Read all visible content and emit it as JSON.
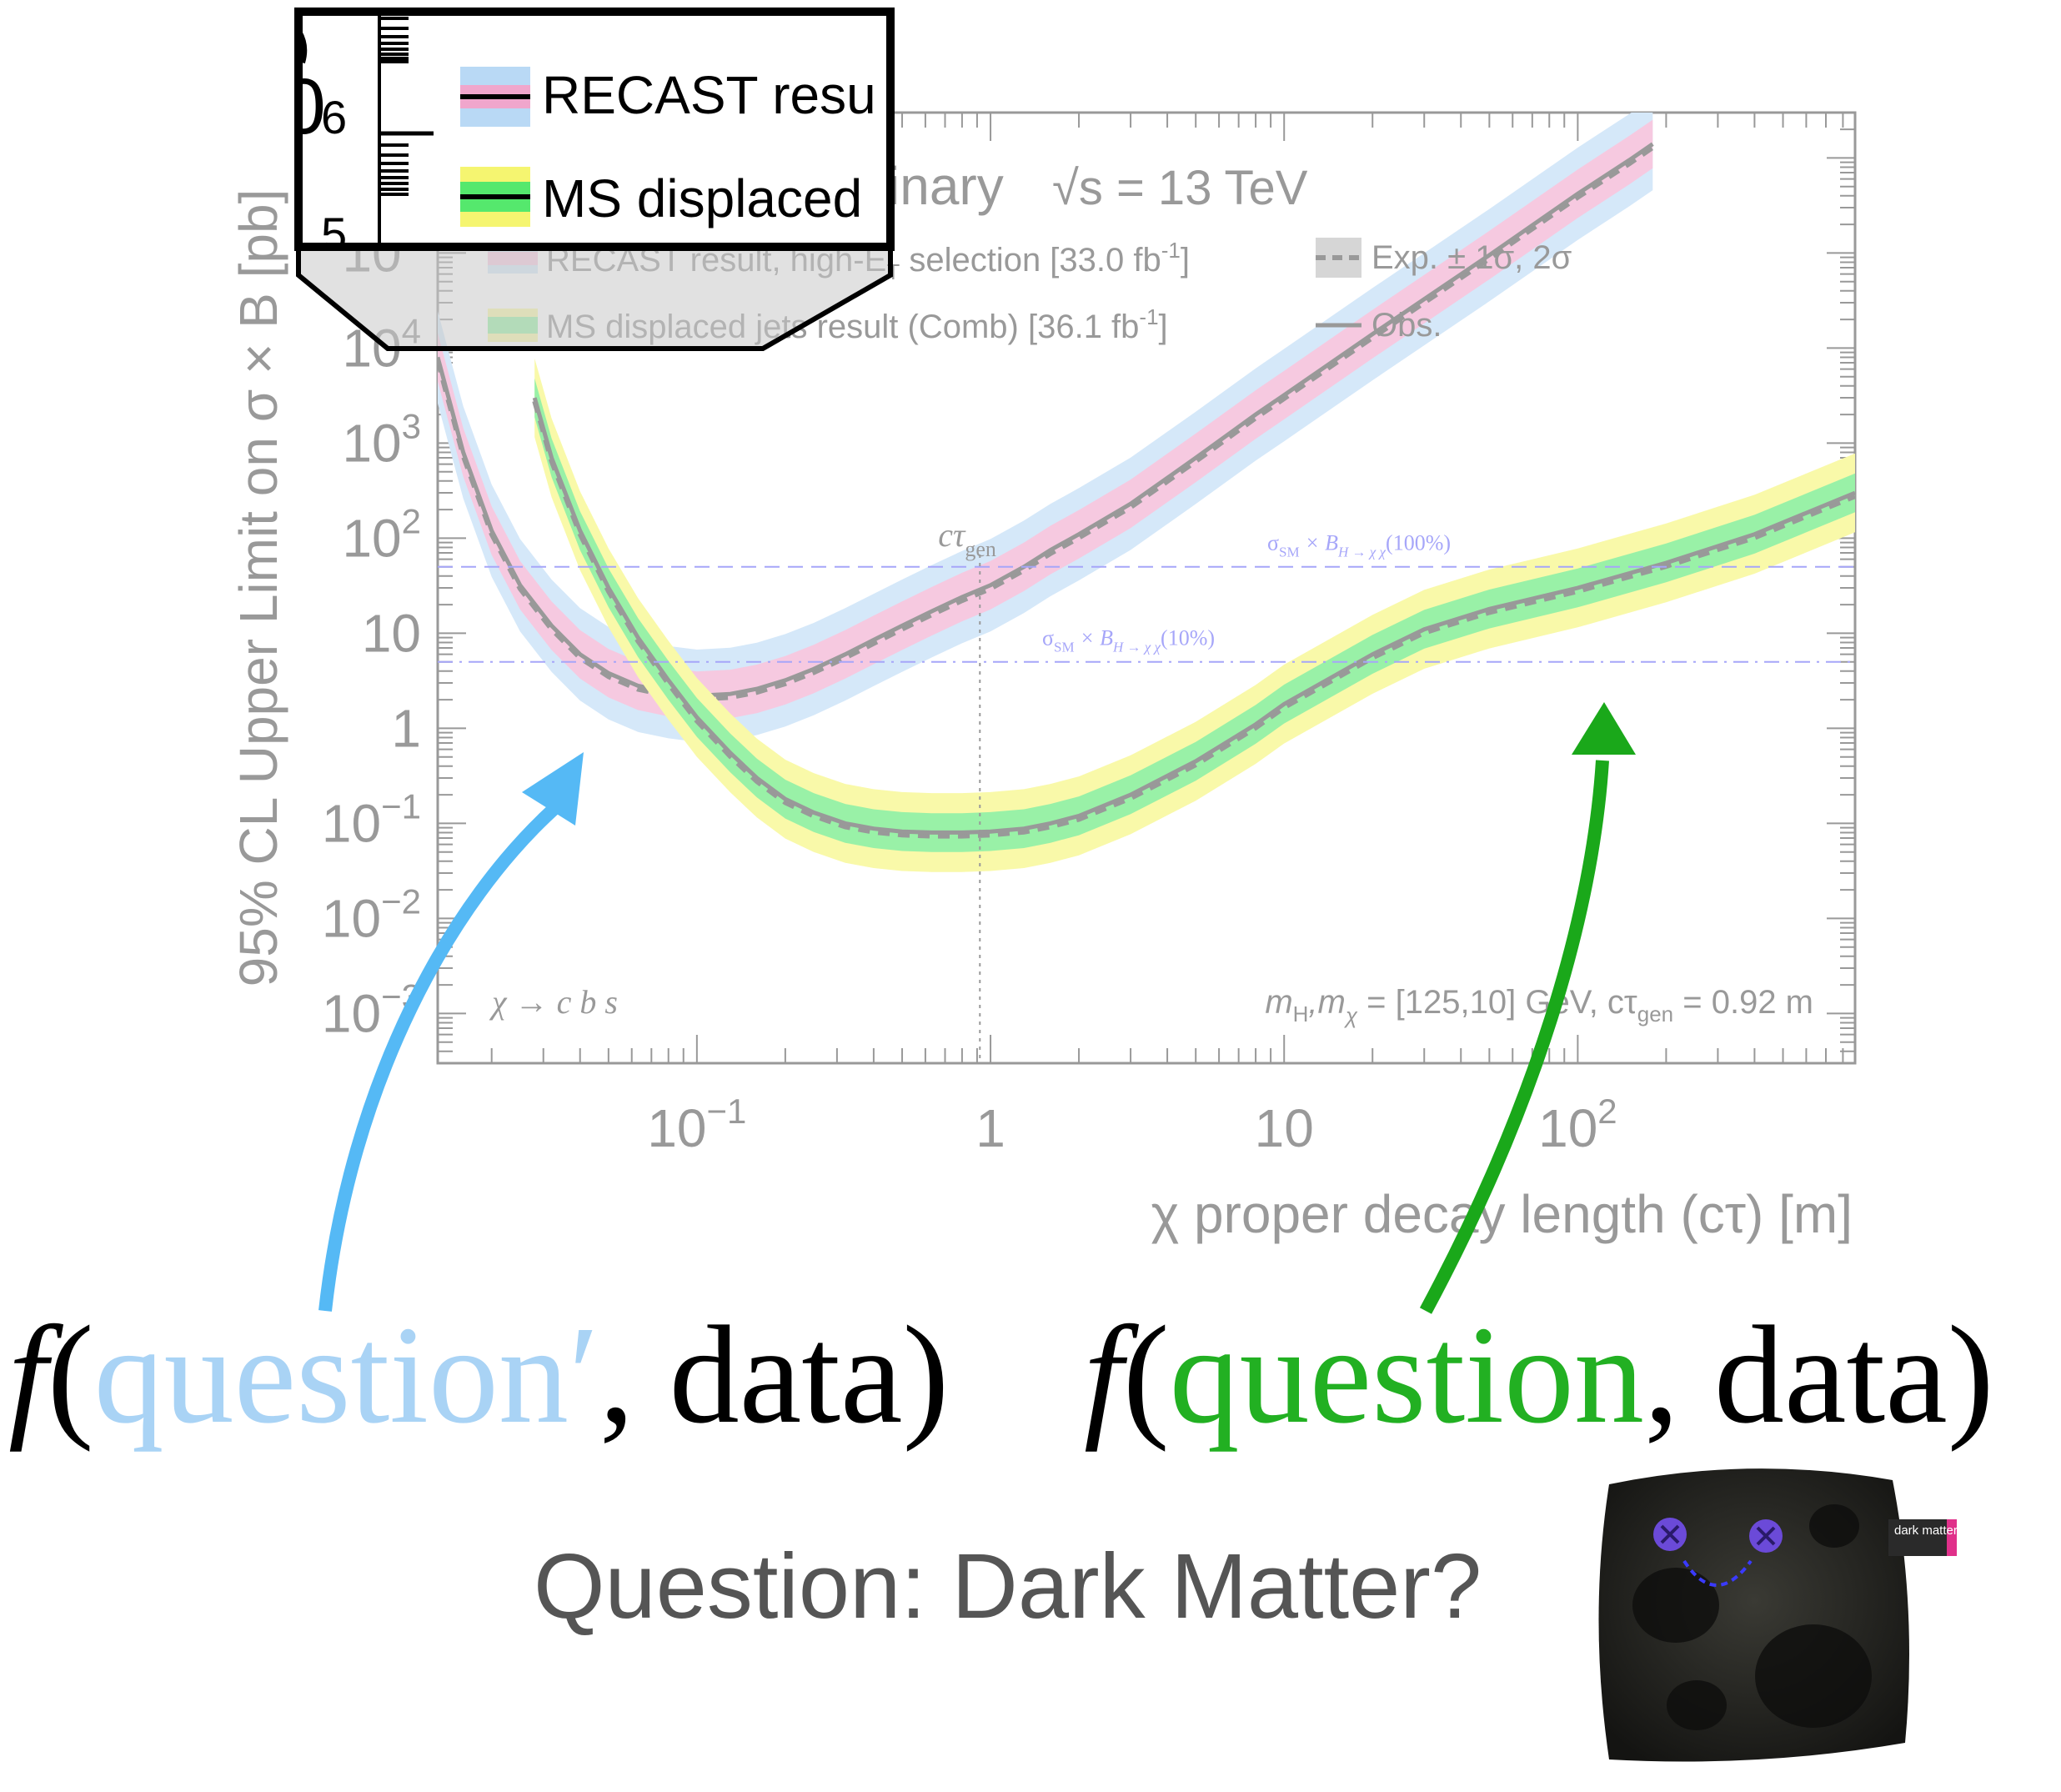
{
  "chart_data": {
    "type": "line",
    "title": "",
    "experiment_fragment": "inary",
    "energy_label": "√s = 13 TeV",
    "xlabel": "χ proper decay length (cτ) [m]",
    "ylabel": "95% CL Upper Limit on σ × B [pb]",
    "x_scale": "log",
    "y_scale": "log",
    "xlim": [
      0.0131,
      880
    ],
    "ylim": [
      0.0003,
      3000000
    ],
    "x_tick_labels": [
      {
        "x": 0.1,
        "label": "10",
        "exp": "−1"
      },
      {
        "x": 1,
        "label": "1",
        "exp": ""
      },
      {
        "x": 10,
        "label": "10",
        "exp": ""
      },
      {
        "x": 100,
        "label": "10",
        "exp": "2"
      }
    ],
    "y_tick_labels": [
      {
        "y": 0.001,
        "label": "10",
        "exp": "−3"
      },
      {
        "y": 0.01,
        "label": "10",
        "exp": "−2"
      },
      {
        "y": 0.1,
        "label": "10",
        "exp": "−1"
      },
      {
        "y": 1,
        "label": "1",
        "exp": ""
      },
      {
        "y": 10,
        "label": "10",
        "exp": ""
      },
      {
        "y": 100,
        "label": "10",
        "exp": "2"
      },
      {
        "y": 1000,
        "label": "10",
        "exp": "3"
      },
      {
        "y": 10000,
        "label": "10",
        "exp": "4"
      },
      {
        "y": 100000,
        "label": "10",
        "exp": "5"
      },
      {
        "y": 1000000,
        "label": "10",
        "exp": "6"
      }
    ],
    "legend": {
      "placement": "top-left",
      "entries": [
        {
          "label": "RECAST result, high-E",
          "sub": "T",
          "suffix": " selection [33.0 fb",
          "sup": "-1",
          "end": "]"
        },
        {
          "label": "MS displaced jets result (Comb) [36.1 fb",
          "sup": "-1",
          "end": "]"
        },
        {
          "label": "Exp. ± 1σ, 2σ"
        },
        {
          "label": "Obs."
        }
      ]
    },
    "series": [
      {
        "name": "RECAST result, high-E_T selection [33.0 fb-1]",
        "color_center": "#f0a6cc",
        "color_band": "#b9d9f5",
        "x": [
          0.0131,
          0.016,
          0.02,
          0.025,
          0.032,
          0.04,
          0.05,
          0.063,
          0.08,
          0.1,
          0.13,
          0.16,
          0.2,
          0.25,
          0.32,
          0.4,
          0.5,
          0.63,
          0.8,
          1,
          1.3,
          1.6,
          2,
          3,
          5,
          8,
          10,
          20,
          50,
          100,
          150,
          180
        ],
        "obs": [
          8000,
          800,
          120,
          32,
          12,
          6,
          3.8,
          2.8,
          2.4,
          2.2,
          2.3,
          2.6,
          3.2,
          4.2,
          6,
          8.5,
          12,
          17,
          24,
          32,
          50,
          75,
          110,
          230,
          700,
          2000,
          3200,
          14000,
          95000,
          420000,
          950000,
          1400000
        ],
        "band_factor": 1.8
      },
      {
        "name": "MS displaced jets result (Comb) [36.1 fb-1]",
        "color_center": "#55e86d",
        "color_band": "#f5f570",
        "x": [
          0.028,
          0.032,
          0.04,
          0.05,
          0.063,
          0.08,
          0.1,
          0.13,
          0.16,
          0.2,
          0.25,
          0.32,
          0.4,
          0.5,
          0.63,
          0.8,
          1,
          1.3,
          1.6,
          2,
          3,
          5,
          8,
          10,
          20,
          30,
          50,
          100,
          200,
          400,
          880
        ],
        "obs": [
          3000,
          700,
          120,
          30,
          9,
          3.2,
          1.3,
          0.55,
          0.3,
          0.18,
          0.13,
          0.1,
          0.088,
          0.082,
          0.08,
          0.08,
          0.082,
          0.088,
          0.1,
          0.12,
          0.2,
          0.45,
          1.1,
          1.8,
          6,
          11,
          18,
          30,
          55,
          110,
          300
        ],
        "band1_factor": 1.6,
        "band2_factor": 2.6
      }
    ],
    "reference_lines": [
      {
        "y": 50,
        "style": "dashed",
        "label": "σ",
        "label_sub": "SM",
        "label_mid": " × B",
        "label_sub2": "H → χ χ",
        "label_end": "(100%)"
      },
      {
        "y": 5,
        "style": "dashdot",
        "label": "σ",
        "label_sub": "SM",
        "label_mid": " × B",
        "label_sub2": "H → χ χ",
        "label_end": "(10%)"
      }
    ],
    "vertical_line": {
      "x": 0.92,
      "label": "cτ",
      "label_sub": "gen"
    },
    "annotations": {
      "decay": "χ →  c b s",
      "mass_info": "m",
      "mass_info_sub1": "H",
      "mass_info_mid": ",m",
      "mass_info_sub2": "χ",
      "mass_info_end": " = [125,10] GeV, cτ",
      "mass_info_sub3": "gen",
      "mass_info_tail": " = 0.92 m"
    },
    "grid": false
  },
  "zoom_inset": {
    "tick_label_partial": "0",
    "tick_exp_6": "6",
    "tick_exp_5": "5",
    "legend_recast_partial": "RECAST resu",
    "legend_ms_partial": "MS displaced"
  },
  "overlay": {
    "formula_left": {
      "f": "f",
      "open": "(",
      "question": "question′",
      "rest": ", data)"
    },
    "formula_right": {
      "f": "f",
      "open": "(",
      "question": "question",
      "rest": ", data)"
    },
    "question_text": "Question: Dark Matter?",
    "plush_tag": "dark matter",
    "colors": {
      "left_arrow": "#55b9f5",
      "right_arrow": "#1aa81a",
      "left_question": "#a9d3f5",
      "right_question": "#22b022"
    }
  }
}
